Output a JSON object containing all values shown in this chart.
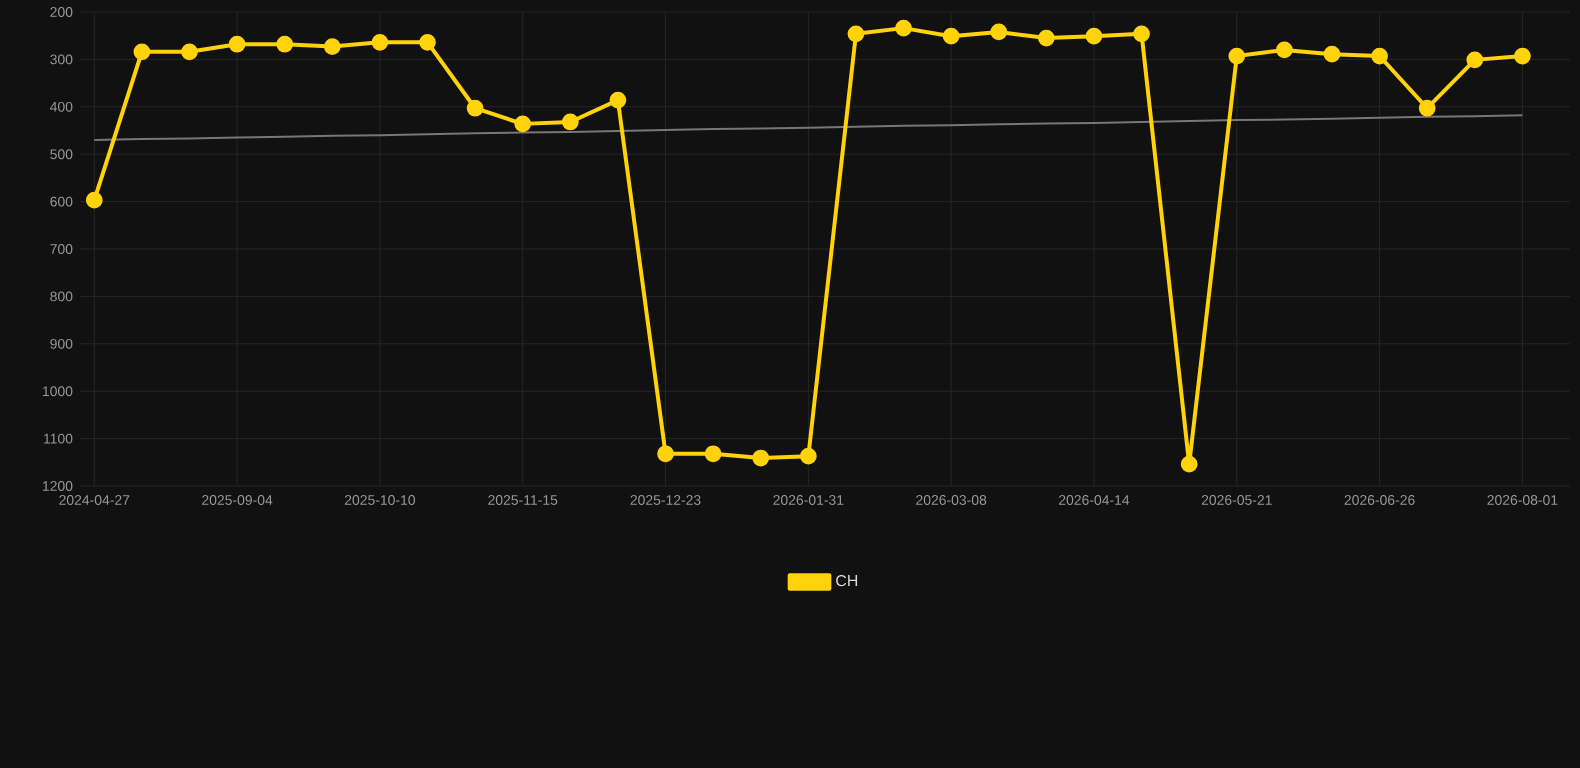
{
  "chart_data": {
    "type": "line",
    "categories": [
      "2024-04-27",
      null,
      null,
      "2025-09-04",
      null,
      null,
      "2025-10-10",
      null,
      null,
      "2025-11-15",
      null,
      null,
      "2025-12-23",
      null,
      null,
      "2026-01-31",
      null,
      null,
      "2026-03-08",
      null,
      null,
      "2026-04-14",
      null,
      null,
      "2026-05-21",
      null,
      null,
      "2026-06-26",
      null,
      null,
      "2026-08-01"
    ],
    "series": [
      {
        "name": "CH",
        "color": "#ffd20a",
        "values": [
          597,
          284,
          284,
          268,
          268,
          273,
          264,
          264,
          403,
          436,
          432,
          386,
          1132,
          1132,
          1141,
          1137,
          246,
          234,
          251,
          242,
          255,
          251,
          246,
          1154,
          293,
          280,
          289,
          293,
          403,
          301,
          293
        ]
      },
      {
        "type": "line",
        "marker": "none",
        "color": "#777777",
        "values": [
          470,
          468,
          467,
          465,
          463,
          461,
          460,
          458,
          456,
          454,
          453,
          451,
          449,
          447,
          446,
          444,
          442,
          440,
          439,
          437,
          435,
          434,
          432,
          430,
          428,
          427,
          425,
          423,
          421,
          420,
          418
        ]
      }
    ],
    "ylim": [
      1200,
      200
    ],
    "yticks": [
      200,
      300,
      400,
      500,
      600,
      700,
      800,
      900,
      1000,
      1100,
      1200
    ],
    "grid": true,
    "legend": "bottom",
    "marker": "circle",
    "line_style": "solid"
  }
}
